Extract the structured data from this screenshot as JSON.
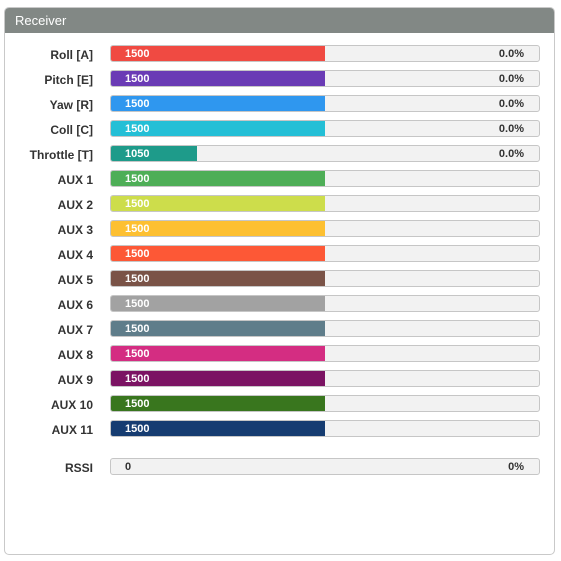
{
  "panel": {
    "title": "Receiver"
  },
  "channels": [
    {
      "label": "Roll [A]",
      "value": "1500",
      "percent": "0.0%",
      "fraction": 0.5,
      "color": "#f04a42"
    },
    {
      "label": "Pitch [E]",
      "value": "1500",
      "percent": "0.0%",
      "fraction": 0.5,
      "color": "#6a3bb5"
    },
    {
      "label": "Yaw [R]",
      "value": "1500",
      "percent": "0.0%",
      "fraction": 0.5,
      "color": "#2f97ef"
    },
    {
      "label": "Coll [C]",
      "value": "1500",
      "percent": "0.0%",
      "fraction": 0.5,
      "color": "#24bfd6"
    },
    {
      "label": "Throttle [T]",
      "value": "1050",
      "percent": "0.0%",
      "fraction": 0.2,
      "color": "#1e9b8a"
    },
    {
      "label": "AUX 1",
      "value": "1500",
      "percent": "",
      "fraction": 0.5,
      "color": "#4eae57"
    },
    {
      "label": "AUX 2",
      "value": "1500",
      "percent": "",
      "fraction": 0.5,
      "color": "#cddd4b"
    },
    {
      "label": "AUX 3",
      "value": "1500",
      "percent": "",
      "fraction": 0.5,
      "color": "#fdc031"
    },
    {
      "label": "AUX 4",
      "value": "1500",
      "percent": "",
      "fraction": 0.5,
      "color": "#fd5836"
    },
    {
      "label": "AUX 5",
      "value": "1500",
      "percent": "",
      "fraction": 0.5,
      "color": "#7a5347"
    },
    {
      "label": "AUX 6",
      "value": "1500",
      "percent": "",
      "fraction": 0.5,
      "color": "#a2a2a2"
    },
    {
      "label": "AUX 7",
      "value": "1500",
      "percent": "",
      "fraction": 0.5,
      "color": "#5f7d8a"
    },
    {
      "label": "AUX 8",
      "value": "1500",
      "percent": "",
      "fraction": 0.5,
      "color": "#d42d82"
    },
    {
      "label": "AUX 9",
      "value": "1500",
      "percent": "",
      "fraction": 0.5,
      "color": "#7b1363"
    },
    {
      "label": "AUX 10",
      "value": "1500",
      "percent": "",
      "fraction": 0.5,
      "color": "#39761e"
    },
    {
      "label": "AUX 11",
      "value": "1500",
      "percent": "",
      "fraction": 0.5,
      "color": "#163c71"
    }
  ],
  "rssi": {
    "label": "RSSI",
    "value": "0",
    "percent": "0%"
  }
}
